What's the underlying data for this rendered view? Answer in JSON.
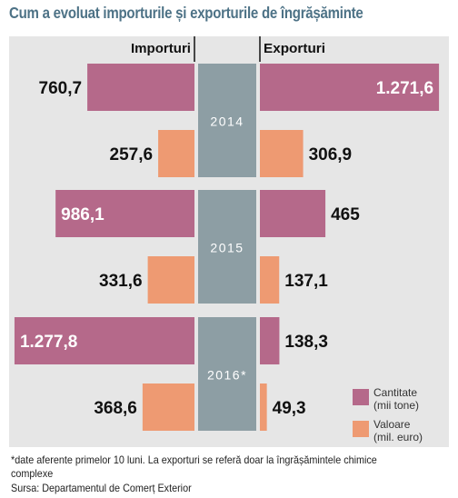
{
  "title": "Cum a evoluat importurile și exporturile de îngrășăminte",
  "footnote": "*date aferente primelor 10 luni. La exporturi se referă doar la îngrășămintele chimice complexe",
  "source": "Sursa: Departamentul de Comerț Exterior",
  "colors": {
    "cantitate": "#b5698a",
    "valoare": "#ee9a72",
    "year_band": "#8d9ea4",
    "panel_bg": "#e6e6e6",
    "title": "#4d7286"
  },
  "chart_data": {
    "type": "bar",
    "orientation": "horizontal-butterfly",
    "left_label": "Importuri",
    "right_label": "Exporturi",
    "categories": [
      "2014",
      "2015",
      "2016*"
    ],
    "series": [
      {
        "name": "Cantitate (mii tone)",
        "color_key": "cantitate",
        "imports": [
          760.7,
          986.1,
          1277.8
        ],
        "exports": [
          1271.6,
          465,
          138.3
        ],
        "import_labels": [
          "760,7",
          "986,1",
          "1.277,8"
        ],
        "export_labels": [
          "1.271,6",
          "465",
          "138,3"
        ]
      },
      {
        "name": "Valoare (mil. euro)",
        "color_key": "valoare",
        "imports": [
          257.6,
          331.6,
          368.6
        ],
        "exports": [
          306.9,
          137.1,
          49.3
        ],
        "import_labels": [
          "257,6",
          "331,6",
          "368,6"
        ],
        "export_labels": [
          "306,9",
          "137,1",
          "49,3"
        ]
      }
    ],
    "legend": [
      {
        "line1": "Cantitate",
        "line2": "(mii tone)",
        "color_key": "cantitate"
      },
      {
        "line1": "Valoare",
        "line2": "(mil. euro)",
        "color_key": "valoare"
      }
    ],
    "legend_position": "bottom-right"
  }
}
